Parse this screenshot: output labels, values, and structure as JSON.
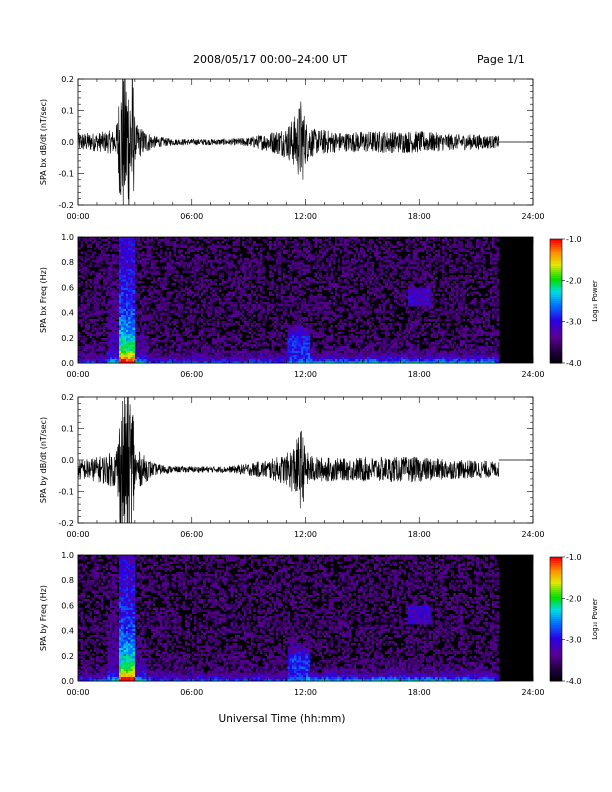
{
  "header": {
    "title": "2008/05/17  00:00–24:00 UT",
    "page": "Page 1/1"
  },
  "chart_data": [
    {
      "type": "line",
      "ylabel": "SPA bx dB/dt (nT/sec)",
      "ylim": [
        -0.2,
        0.2
      ],
      "yticks": [
        "0.2",
        "0.1",
        "0.0",
        "-0.1",
        "-0.2"
      ],
      "xlim_hours": [
        0,
        24
      ],
      "xticks": [
        "00:00",
        "06:00",
        "12:00",
        "18:00",
        "24:00"
      ],
      "baseline": 0.0,
      "data_end_hour": 22.2,
      "envelope_hours": [
        0,
        1,
        2,
        2.3,
        2.6,
        2.9,
        3,
        4,
        5,
        6,
        7,
        8,
        9,
        10,
        11,
        11.5,
        11.8,
        12,
        12.5,
        13,
        14,
        15,
        16,
        17,
        18,
        19,
        20,
        21,
        22,
        22.2
      ],
      "envelope_amp": [
        0.03,
        0.03,
        0.04,
        0.25,
        0.25,
        0.25,
        0.06,
        0.02,
        0.01,
        0.01,
        0.01,
        0.01,
        0.015,
        0.03,
        0.05,
        0.09,
        0.15,
        0.07,
        0.04,
        0.04,
        0.03,
        0.035,
        0.035,
        0.035,
        0.035,
        0.03,
        0.025,
        0.025,
        0.02,
        0.02
      ]
    },
    {
      "type": "heatmap",
      "ylabel": "SPA bx Freq (Hz)",
      "ylim": [
        0.0,
        1.0
      ],
      "yticks": [
        "1.0",
        "0.8",
        "0.6",
        "0.4",
        "0.2",
        "0.0"
      ],
      "xlim_hours": [
        0,
        24
      ],
      "xticks": [
        "00:00",
        "06:00",
        "12:00",
        "18:00",
        "24:00"
      ],
      "data_end_hour": 22.2,
      "colorbar": {
        "label": "Log₁₀ Power",
        "ticks": [
          "-1.0",
          "-2.0",
          "-3.0",
          "-4.0"
        ],
        "range": [
          -4.0,
          -1.0
        ]
      }
    },
    {
      "type": "line",
      "ylabel": "SPA by dB/dt (nT/sec)",
      "ylim": [
        -0.2,
        0.2
      ],
      "yticks": [
        "0.2",
        "0.1",
        "0.0",
        "-0.1",
        "-0.2"
      ],
      "xlim_hours": [
        0,
        24
      ],
      "xticks": [
        "00:00",
        "06:00",
        "12:00",
        "18:00",
        "24:00"
      ],
      "baseline": -0.03,
      "flat_after_value": 0.0,
      "data_end_hour": 22.2,
      "envelope_hours": [
        0,
        1,
        2,
        2.3,
        2.6,
        2.9,
        3,
        4,
        5,
        6,
        7,
        8,
        9,
        10,
        11,
        11.5,
        11.8,
        12,
        12.5,
        13,
        14,
        15,
        16,
        17,
        18,
        19,
        20,
        21,
        22,
        22.2
      ],
      "envelope_amp": [
        0.03,
        0.04,
        0.06,
        0.25,
        0.25,
        0.25,
        0.07,
        0.02,
        0.01,
        0.01,
        0.01,
        0.01,
        0.02,
        0.03,
        0.05,
        0.09,
        0.14,
        0.06,
        0.04,
        0.04,
        0.035,
        0.04,
        0.04,
        0.04,
        0.04,
        0.035,
        0.03,
        0.03,
        0.025,
        0.025
      ]
    },
    {
      "type": "heatmap",
      "ylabel": "SPA by Freq (Hz)",
      "ylim": [
        0.0,
        1.0
      ],
      "yticks": [
        "1.0",
        "0.8",
        "0.6",
        "0.4",
        "0.2",
        "0.0"
      ],
      "xlim_hours": [
        0,
        24
      ],
      "xticks": [
        "00:00",
        "06:00",
        "12:00",
        "18:00",
        "24:00"
      ],
      "data_end_hour": 22.2,
      "colorbar": {
        "label": "Log₁₀ Power",
        "ticks": [
          "-1.0",
          "-2.0",
          "-3.0",
          "-4.0"
        ],
        "range": [
          -4.0,
          -1.0
        ]
      }
    }
  ],
  "xlabel": "Universal Time (hh:mm)"
}
